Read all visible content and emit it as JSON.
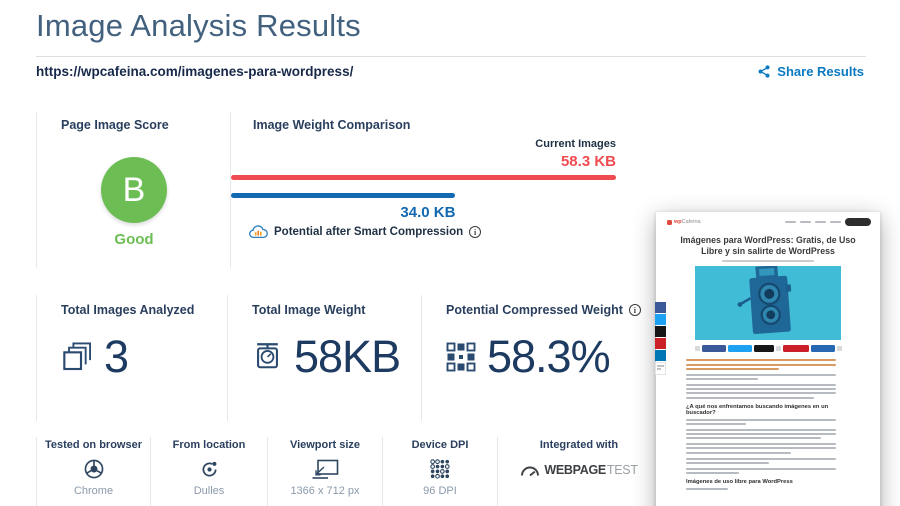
{
  "header": {
    "title": "Image Analysis Results",
    "url": "https://wpcafeina.com/imagenes-para-wordpress/",
    "share_label": "Share Results",
    "share_color": "#0b7ac3"
  },
  "score": {
    "label": "Page Image Score",
    "grade": "B",
    "grade_text": "Good",
    "grade_color": "#6cbe54"
  },
  "comparison": {
    "label": "Image Weight Comparison",
    "current_label": "Current Images",
    "current_value": "58.3 KB",
    "current_color": "#ef4b50",
    "potential_value": "34.0 KB",
    "potential_label": "Potential after Smart Compression",
    "potential_color": "#1269b2",
    "potential_bar_percent": 58.3
  },
  "stats": [
    {
      "label": "Total Images Analyzed",
      "value": "3",
      "icon": "stacked-images-icon"
    },
    {
      "label": "Total Image Weight",
      "value": "58KB",
      "icon": "weight-scale-icon"
    },
    {
      "label": "Potential Compressed Weight",
      "value": "58.3%",
      "icon": "compression-grid-icon"
    }
  ],
  "meta": [
    {
      "label": "Tested on browser",
      "value": "Chrome",
      "icon": "chrome-icon"
    },
    {
      "label": "From location",
      "value": "Dulles",
      "icon": "location-icon"
    },
    {
      "label": "Viewport size",
      "value": "1366 x 712 px",
      "icon": "viewport-icon"
    },
    {
      "label": "Device DPI",
      "value": "96 DPI",
      "icon": "dpi-dots-icon"
    },
    {
      "label": "Integrated with",
      "icon": "webpagetest-logo"
    }
  ],
  "webpagetest": {
    "bold": "WEBPAGE",
    "light": "TEST"
  },
  "thumbnail": {
    "logo_prefix": "wp",
    "logo_suffix": "Cafeina",
    "title": "Imágenes para WordPress: Gratis, de Uso Libre y sin salirte de WordPress",
    "heading1": "¿A qué nos enfrentamos buscando imágenes en un buscador?",
    "heading2": "Imágenes de uso libre para WordPress",
    "hero_color": "#41bcd6",
    "social_colors": [
      "#3b5998",
      "#1da1f2",
      "#161616",
      "#cb2027",
      "#0077b5"
    ]
  }
}
